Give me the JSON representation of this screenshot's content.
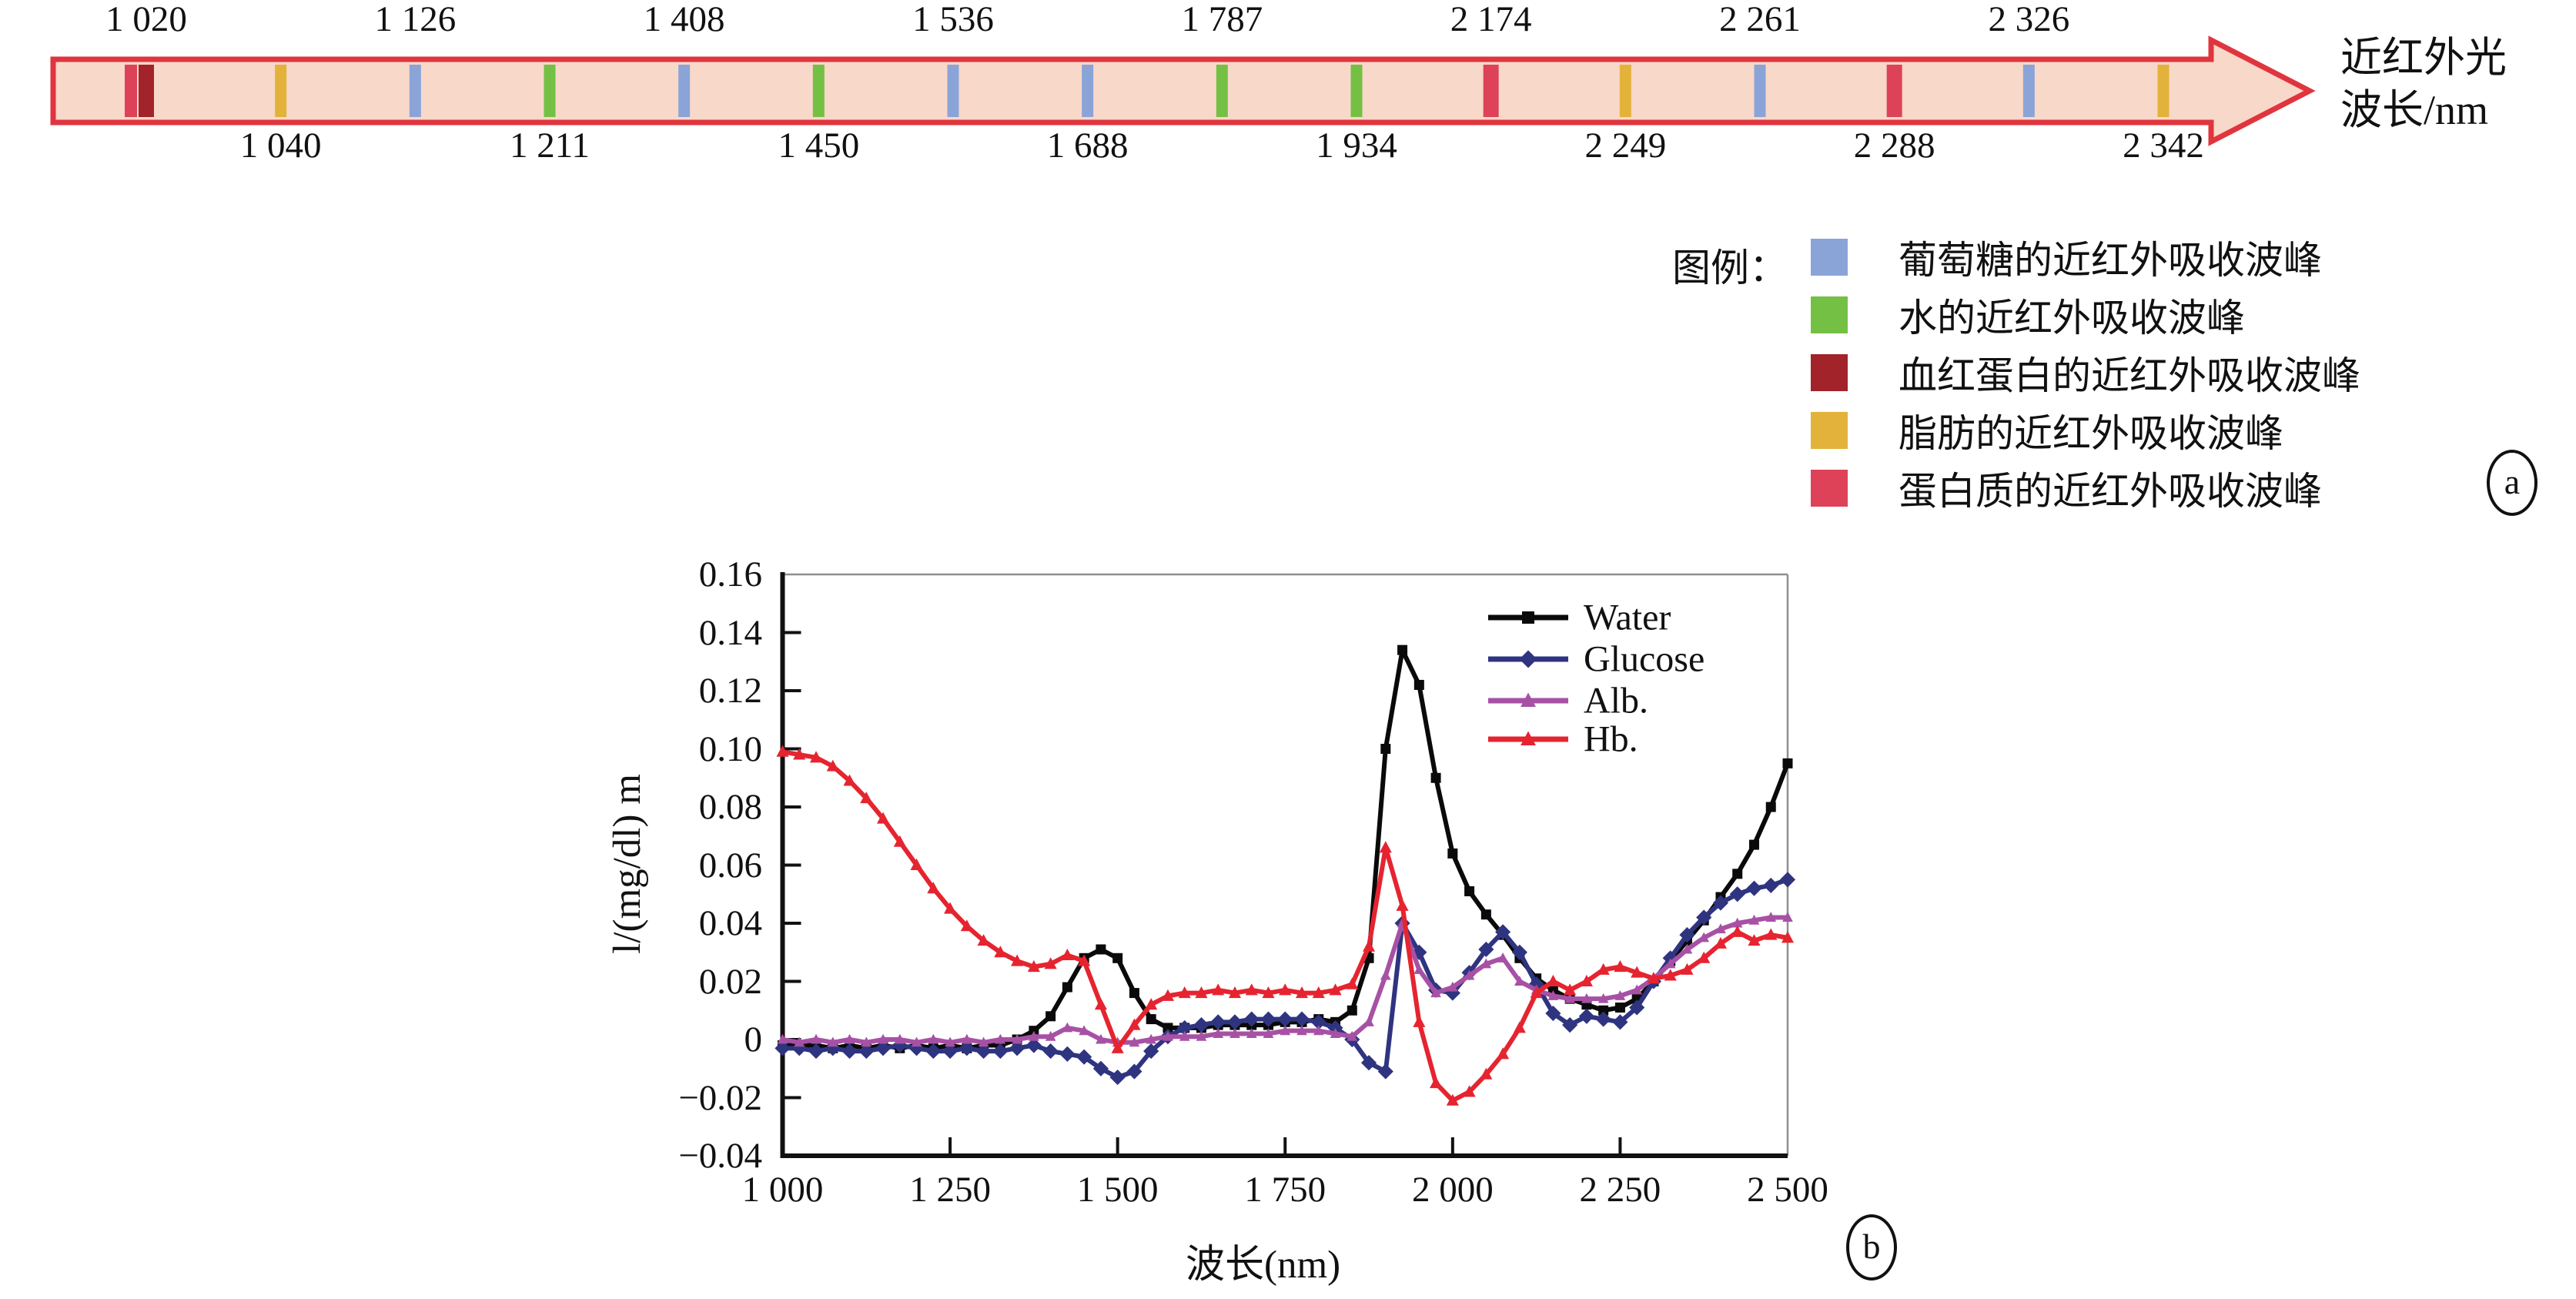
{
  "panel_a": {
    "tag": "a",
    "arrow_title_line1": "近红外光",
    "arrow_title_line2": "波长/nm",
    "colors": {
      "glucose": "#8aa4d8",
      "water": "#74c044",
      "hemoglobin": "#a2232a",
      "fat": "#e3b23a",
      "protein": "#dd4258",
      "arrow_fill": "#f8d8c9",
      "arrow_border": "#e0353e"
    },
    "legend_title": "图例：",
    "legend_items": [
      {
        "color_key": "glucose",
        "label": "葡萄糖的近红外吸收波峰"
      },
      {
        "color_key": "water",
        "label": "水的近红外吸收波峰"
      },
      {
        "color_key": "hemoglobin",
        "label": "血红蛋白的近红外吸收波峰"
      },
      {
        "color_key": "fat",
        "label": "脂肪的近红外吸收波峰"
      },
      {
        "color_key": "protein",
        "label": "蛋白质的近红外吸收波峰"
      }
    ],
    "bands": [
      {
        "wavelength": "1 020",
        "substance": "hemoglobin",
        "label_row": "top",
        "extra_protein_band": true
      },
      {
        "wavelength": "1 040",
        "substance": "fat",
        "label_row": "bottom"
      },
      {
        "wavelength": "1 126",
        "substance": "glucose",
        "label_row": "top"
      },
      {
        "wavelength": "1 211",
        "substance": "water",
        "label_row": "bottom"
      },
      {
        "wavelength": "1 408",
        "substance": "glucose",
        "label_row": "top"
      },
      {
        "wavelength": "1 450",
        "substance": "water",
        "label_row": "bottom"
      },
      {
        "wavelength": "1 536",
        "substance": "glucose",
        "label_row": "top"
      },
      {
        "wavelength": "1 688",
        "substance": "glucose",
        "label_row": "bottom"
      },
      {
        "wavelength": "1 787",
        "substance": "water",
        "label_row": "top"
      },
      {
        "wavelength": "1 934",
        "substance": "water",
        "label_row": "bottom"
      },
      {
        "wavelength": "2 174",
        "substance": "protein",
        "label_row": "top"
      },
      {
        "wavelength": "2 249",
        "substance": "fat",
        "label_row": "bottom"
      },
      {
        "wavelength": "2 261",
        "substance": "glucose",
        "label_row": "top"
      },
      {
        "wavelength": "2 288",
        "substance": "protein",
        "label_row": "bottom"
      },
      {
        "wavelength": "2 326",
        "substance": "glucose",
        "label_row": "top"
      },
      {
        "wavelength": "2 342",
        "substance": "fat",
        "label_row": "bottom"
      }
    ]
  },
  "chart_data": {
    "type": "line",
    "tag": "b",
    "xlabel": "波长(nm)",
    "ylabel": "l/(mg/dl) m",
    "xlim": [
      1000,
      2500
    ],
    "ylim": [
      -0.04,
      0.16
    ],
    "grid": false,
    "legend_position": "top-right-inside",
    "xticks": [
      "1 000",
      "1 250",
      "1 500",
      "1 750",
      "2 000",
      "2 250",
      "2 500"
    ],
    "yticks": [
      "0.16",
      "0.14",
      "0.12",
      "0.10",
      "0.08",
      "0.06",
      "0.04",
      "0.02",
      "0",
      "−0.02",
      "−0.04"
    ],
    "x_step": 25,
    "x": [
      1000,
      1025,
      1050,
      1075,
      1100,
      1125,
      1150,
      1175,
      1200,
      1225,
      1250,
      1275,
      1300,
      1325,
      1350,
      1375,
      1400,
      1425,
      1450,
      1475,
      1500,
      1525,
      1550,
      1575,
      1600,
      1625,
      1650,
      1675,
      1700,
      1725,
      1750,
      1775,
      1800,
      1825,
      1850,
      1875,
      1900,
      1925,
      1950,
      1975,
      2000,
      2025,
      2050,
      2075,
      2100,
      2125,
      2150,
      2175,
      2200,
      2225,
      2250,
      2275,
      2300,
      2325,
      2350,
      2375,
      2400,
      2425,
      2450,
      2475,
      2500
    ],
    "series": [
      {
        "name": "Water",
        "color": "#0a0a0a",
        "marker": "square",
        "values": [
          -0.002,
          -0.002,
          -0.002,
          -0.003,
          -0.002,
          -0.003,
          -0.002,
          -0.003,
          -0.002,
          -0.003,
          -0.002,
          -0.003,
          -0.002,
          -0.002,
          0.0,
          0.003,
          0.008,
          0.018,
          0.028,
          0.031,
          0.028,
          0.016,
          0.007,
          0.004,
          0.004,
          0.004,
          0.005,
          0.005,
          0.005,
          0.005,
          0.006,
          0.006,
          0.007,
          0.006,
          0.01,
          0.028,
          0.1,
          0.134,
          0.122,
          0.09,
          0.064,
          0.051,
          0.043,
          0.036,
          0.028,
          0.021,
          0.017,
          0.014,
          0.012,
          0.01,
          0.011,
          0.014,
          0.02,
          0.027,
          0.034,
          0.041,
          0.049,
          0.057,
          0.067,
          0.08,
          0.095
        ]
      },
      {
        "name": "Glucose",
        "color": "#2f3480",
        "marker": "diamond",
        "values": [
          -0.003,
          -0.003,
          -0.004,
          -0.003,
          -0.004,
          -0.004,
          -0.003,
          -0.002,
          -0.003,
          -0.004,
          -0.004,
          -0.003,
          -0.004,
          -0.004,
          -0.003,
          -0.002,
          -0.004,
          -0.005,
          -0.006,
          -0.01,
          -0.013,
          -0.011,
          -0.004,
          0.001,
          0.004,
          0.005,
          0.006,
          0.006,
          0.007,
          0.007,
          0.007,
          0.007,
          0.006,
          0.004,
          0.0,
          -0.008,
          -0.011,
          0.04,
          0.03,
          0.017,
          0.016,
          0.023,
          0.031,
          0.037,
          0.03,
          0.019,
          0.009,
          0.005,
          0.008,
          0.007,
          0.006,
          0.011,
          0.02,
          0.028,
          0.036,
          0.042,
          0.047,
          0.05,
          0.052,
          0.053,
          0.055
        ]
      },
      {
        "name": "Alb.",
        "color": "#a751a5",
        "marker": "triangle",
        "values": [
          0.0,
          -0.001,
          0.0,
          -0.001,
          0.0,
          -0.001,
          0.0,
          0.0,
          -0.001,
          0.0,
          -0.001,
          0.0,
          -0.001,
          0.0,
          0.0,
          0.001,
          0.001,
          0.004,
          0.003,
          0.0,
          -0.001,
          -0.001,
          0.0,
          0.001,
          0.001,
          0.001,
          0.002,
          0.002,
          0.002,
          0.002,
          0.003,
          0.003,
          0.003,
          0.002,
          0.001,
          0.006,
          0.022,
          0.04,
          0.024,
          0.016,
          0.018,
          0.022,
          0.026,
          0.028,
          0.02,
          0.017,
          0.015,
          0.014,
          0.014,
          0.014,
          0.015,
          0.017,
          0.021,
          0.026,
          0.031,
          0.035,
          0.038,
          0.04,
          0.041,
          0.042,
          0.042
        ]
      },
      {
        "name": "Hb.",
        "color": "#e52430",
        "marker": "triangle",
        "values": [
          0.099,
          0.098,
          0.097,
          0.094,
          0.089,
          0.083,
          0.076,
          0.068,
          0.06,
          0.052,
          0.045,
          0.039,
          0.034,
          0.03,
          0.027,
          0.025,
          0.026,
          0.029,
          0.027,
          0.012,
          -0.003,
          0.005,
          0.012,
          0.015,
          0.016,
          0.016,
          0.017,
          0.016,
          0.017,
          0.016,
          0.017,
          0.016,
          0.016,
          0.017,
          0.019,
          0.032,
          0.066,
          0.046,
          0.006,
          -0.015,
          -0.021,
          -0.018,
          -0.012,
          -0.005,
          0.004,
          0.016,
          0.02,
          0.017,
          0.02,
          0.024,
          0.025,
          0.023,
          0.021,
          0.022,
          0.024,
          0.028,
          0.033,
          0.037,
          0.034,
          0.036,
          0.035
        ]
      }
    ]
  }
}
